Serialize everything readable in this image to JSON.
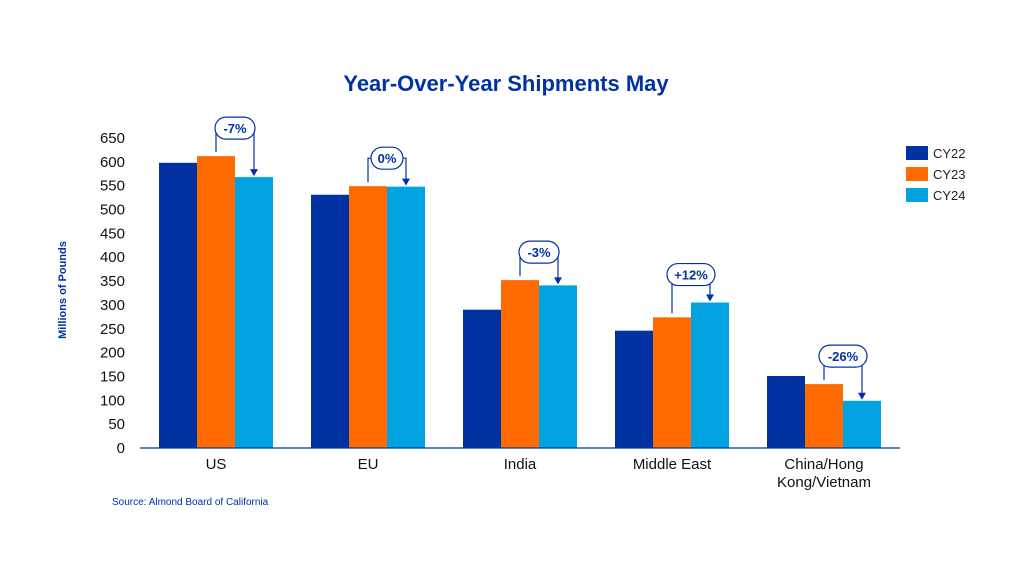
{
  "chart_data": {
    "type": "bar",
    "title": "Year-Over-Year Shipments May",
    "ylabel": "Millions of Pounds",
    "xlabel": "",
    "ylim": [
      0,
      650
    ],
    "yticks": [
      0,
      50,
      100,
      150,
      200,
      250,
      300,
      350,
      400,
      450,
      500,
      550,
      600,
      650
    ],
    "grid": false,
    "legend_position": "right",
    "categories": [
      "US",
      "EU",
      "India",
      "Middle East",
      "China/Hong Kong/Vietnam"
    ],
    "category_lines": [
      [
        "US"
      ],
      [
        "EU"
      ],
      [
        "India"
      ],
      [
        "Middle East"
      ],
      [
        "China/Hong",
        "Kong/Vietnam"
      ]
    ],
    "series": [
      {
        "name": "CY22",
        "color": "#0033a1",
        "values": [
          598,
          531,
          290,
          246,
          151
        ]
      },
      {
        "name": "CY23",
        "color": "#ff6b00",
        "values": [
          612,
          549,
          352,
          274,
          134
        ]
      },
      {
        "name": "CY24",
        "color": "#00a3e0",
        "values": [
          568,
          548,
          341,
          305,
          99
        ]
      }
    ],
    "annotations": [
      "-7%",
      "0%",
      "-3%",
      "+12%",
      "-26%"
    ],
    "source": "Source: Almond Board of California",
    "text_color": "#0033a1"
  }
}
